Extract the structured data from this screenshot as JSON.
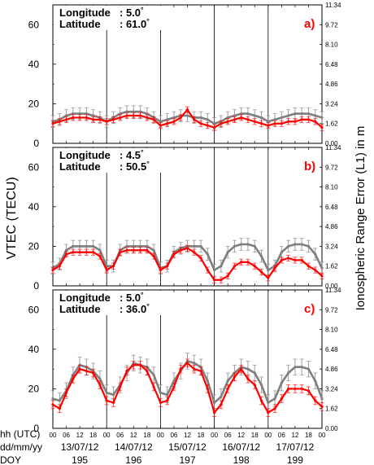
{
  "figure": {
    "left_axis_label": "VTEC (TECU)",
    "right_axis_label": "Ionospheric Range Error (L1) in m",
    "bottom_row_labels": [
      "hh (UTC)",
      "dd/mm/yy",
      "DOY"
    ],
    "hour_ticks": [
      "00",
      "06",
      "12",
      "18"
    ],
    "hour_ticks_last": "00",
    "dates": [
      "13/07/12",
      "14/07/12",
      "15/07/12",
      "16/07/12",
      "17/07/12"
    ],
    "doy": [
      "195",
      "196",
      "197",
      "198",
      "199"
    ]
  },
  "chart_data": [
    {
      "type": "line",
      "panel": "a)",
      "longitude_label": "Longitude",
      "longitude_value": ":   5.0",
      "latitude_label": "Latitude",
      "latitude_value": ":  61.0",
      "degree_symbol": "°",
      "ylim": [
        0,
        70
      ],
      "yticks": [
        "0",
        "20",
        "40",
        "60"
      ],
      "right_ticks": [
        "0.00",
        "1.62",
        "3.24",
        "4.86",
        "6.48",
        "8.10",
        "9.72",
        "11.34"
      ],
      "x_unit": "hours since 13/07/12 00 UTC",
      "xlim": [
        0,
        120
      ],
      "series": [
        {
          "color": "#7f7f7f",
          "error_bars": 3,
          "x": [
            0,
            3,
            6,
            9,
            12,
            15,
            18,
            21,
            24,
            27,
            30,
            33,
            36,
            39,
            42,
            45,
            48,
            51,
            54,
            57,
            60,
            63,
            66,
            69,
            72,
            75,
            78,
            81,
            84,
            87,
            90,
            93,
            96,
            99,
            102,
            105,
            108,
            111,
            114,
            117,
            120
          ],
          "values": [
            11,
            12,
            14,
            15,
            15,
            15,
            14,
            13,
            11,
            13,
            15,
            16,
            16,
            16,
            15,
            13,
            11,
            12,
            13,
            14,
            14,
            13,
            13,
            12,
            10,
            11,
            13,
            14,
            15,
            15,
            14,
            13,
            11,
            12,
            13,
            14,
            15,
            15,
            15,
            14,
            13
          ]
        },
        {
          "color": "#ff0000",
          "error_bars": 1.5,
          "x": [
            0,
            3,
            6,
            9,
            12,
            15,
            18,
            21,
            24,
            27,
            30,
            33,
            36,
            39,
            42,
            45,
            48,
            51,
            54,
            57,
            60,
            63,
            66,
            69,
            72,
            75,
            78,
            81,
            84,
            87,
            90,
            93,
            96,
            99,
            102,
            105,
            108,
            111,
            114,
            117,
            120
          ],
          "values": [
            10,
            11,
            12,
            13,
            13,
            13,
            12,
            12,
            11,
            12,
            13,
            14,
            14,
            14,
            13,
            12,
            9,
            10,
            11,
            13,
            17,
            12,
            10,
            9,
            8,
            10,
            11,
            12,
            13,
            12,
            11,
            10,
            9,
            10,
            10,
            11,
            11,
            12,
            12,
            11,
            8
          ]
        }
      ]
    },
    {
      "type": "line",
      "panel": "b)",
      "longitude_label": "Longitude",
      "longitude_value": ":   4.5",
      "latitude_label": "Latitude",
      "latitude_value": ":  50.5",
      "degree_symbol": "°",
      "ylim": [
        0,
        70
      ],
      "yticks": [
        "0",
        "20",
        "40",
        "60"
      ],
      "right_ticks": [
        "0.00",
        "1.62",
        "3.24",
        "4.86",
        "6.48",
        "8.10",
        "9.72",
        "11.34"
      ],
      "x_unit": "hours since 13/07/12 00 UTC",
      "xlim": [
        0,
        120
      ],
      "series": [
        {
          "color": "#7f7f7f",
          "error_bars": 3,
          "x": [
            0,
            3,
            6,
            9,
            12,
            15,
            18,
            21,
            24,
            27,
            30,
            33,
            36,
            39,
            42,
            45,
            48,
            51,
            54,
            57,
            60,
            63,
            66,
            69,
            72,
            75,
            78,
            81,
            84,
            87,
            90,
            93,
            96,
            99,
            102,
            105,
            108,
            111,
            114,
            117,
            120
          ],
          "values": [
            9,
            11,
            18,
            20,
            20,
            20,
            20,
            18,
            10,
            10,
            18,
            20,
            20,
            20,
            20,
            18,
            9,
            10,
            17,
            19,
            20,
            20,
            20,
            16,
            8,
            10,
            17,
            20,
            21,
            21,
            20,
            15,
            8,
            10,
            17,
            20,
            21,
            21,
            20,
            16,
            9
          ]
        },
        {
          "color": "#ff0000",
          "error_bars": 1.5,
          "x": [
            0,
            3,
            6,
            9,
            12,
            15,
            18,
            21,
            24,
            27,
            30,
            33,
            36,
            39,
            42,
            45,
            48,
            51,
            54,
            57,
            60,
            63,
            66,
            69,
            72,
            75,
            78,
            81,
            84,
            87,
            90,
            93,
            96,
            99,
            102,
            105,
            108,
            111,
            114,
            117,
            120
          ],
          "values": [
            8,
            10,
            16,
            17,
            17,
            17,
            17,
            15,
            8,
            10,
            17,
            18,
            18,
            18,
            18,
            15,
            8,
            10,
            16,
            18,
            19,
            17,
            14,
            8,
            3,
            3,
            5,
            10,
            12,
            12,
            10,
            7,
            4,
            9,
            13,
            14,
            13,
            13,
            10,
            8,
            5
          ]
        }
      ]
    },
    {
      "type": "line",
      "panel": "c)",
      "longitude_label": "Longitude",
      "longitude_value": ":   5.0",
      "latitude_label": "Latitude",
      "latitude_value": ":  36.0",
      "degree_symbol": "°",
      "ylim": [
        0,
        70
      ],
      "yticks": [
        "0",
        "20",
        "40",
        "60"
      ],
      "right_ticks": [
        "0.00",
        "1.62",
        "3.24",
        "4.86",
        "6.48",
        "8.10",
        "9.72",
        "11.34"
      ],
      "x_unit": "hours since 13/07/12 00 UTC",
      "xlim": [
        0,
        120
      ],
      "series": [
        {
          "color": "#7f7f7f",
          "error_bars": 4,
          "x": [
            0,
            3,
            6,
            9,
            12,
            15,
            18,
            21,
            24,
            27,
            30,
            33,
            36,
            39,
            42,
            45,
            48,
            51,
            54,
            57,
            60,
            63,
            66,
            69,
            72,
            75,
            78,
            81,
            84,
            87,
            90,
            93,
            96,
            99,
            102,
            105,
            108,
            111,
            114,
            117,
            120
          ],
          "values": [
            15,
            14,
            19,
            27,
            32,
            31,
            29,
            25,
            18,
            17,
            22,
            28,
            33,
            32,
            31,
            27,
            18,
            17,
            24,
            29,
            34,
            33,
            31,
            24,
            13,
            16,
            24,
            28,
            31,
            30,
            28,
            22,
            13,
            15,
            23,
            28,
            31,
            31,
            30,
            24,
            15
          ]
        },
        {
          "color": "#ff0000",
          "error_bars": 2,
          "x": [
            0,
            3,
            6,
            9,
            12,
            15,
            18,
            21,
            24,
            27,
            30,
            33,
            36,
            39,
            42,
            45,
            48,
            51,
            54,
            57,
            60,
            63,
            66,
            69,
            72,
            75,
            78,
            81,
            84,
            87,
            90,
            93,
            96,
            99,
            102,
            105,
            108,
            111,
            114,
            117,
            120
          ],
          "values": [
            12,
            10,
            18,
            25,
            30,
            29,
            28,
            22,
            14,
            13,
            21,
            29,
            32,
            32,
            29,
            21,
            13,
            14,
            21,
            30,
            33,
            30,
            29,
            20,
            8,
            12,
            20,
            26,
            30,
            25,
            22,
            14,
            8,
            10,
            15,
            20,
            20,
            20,
            19,
            14,
            11
          ]
        }
      ]
    }
  ]
}
